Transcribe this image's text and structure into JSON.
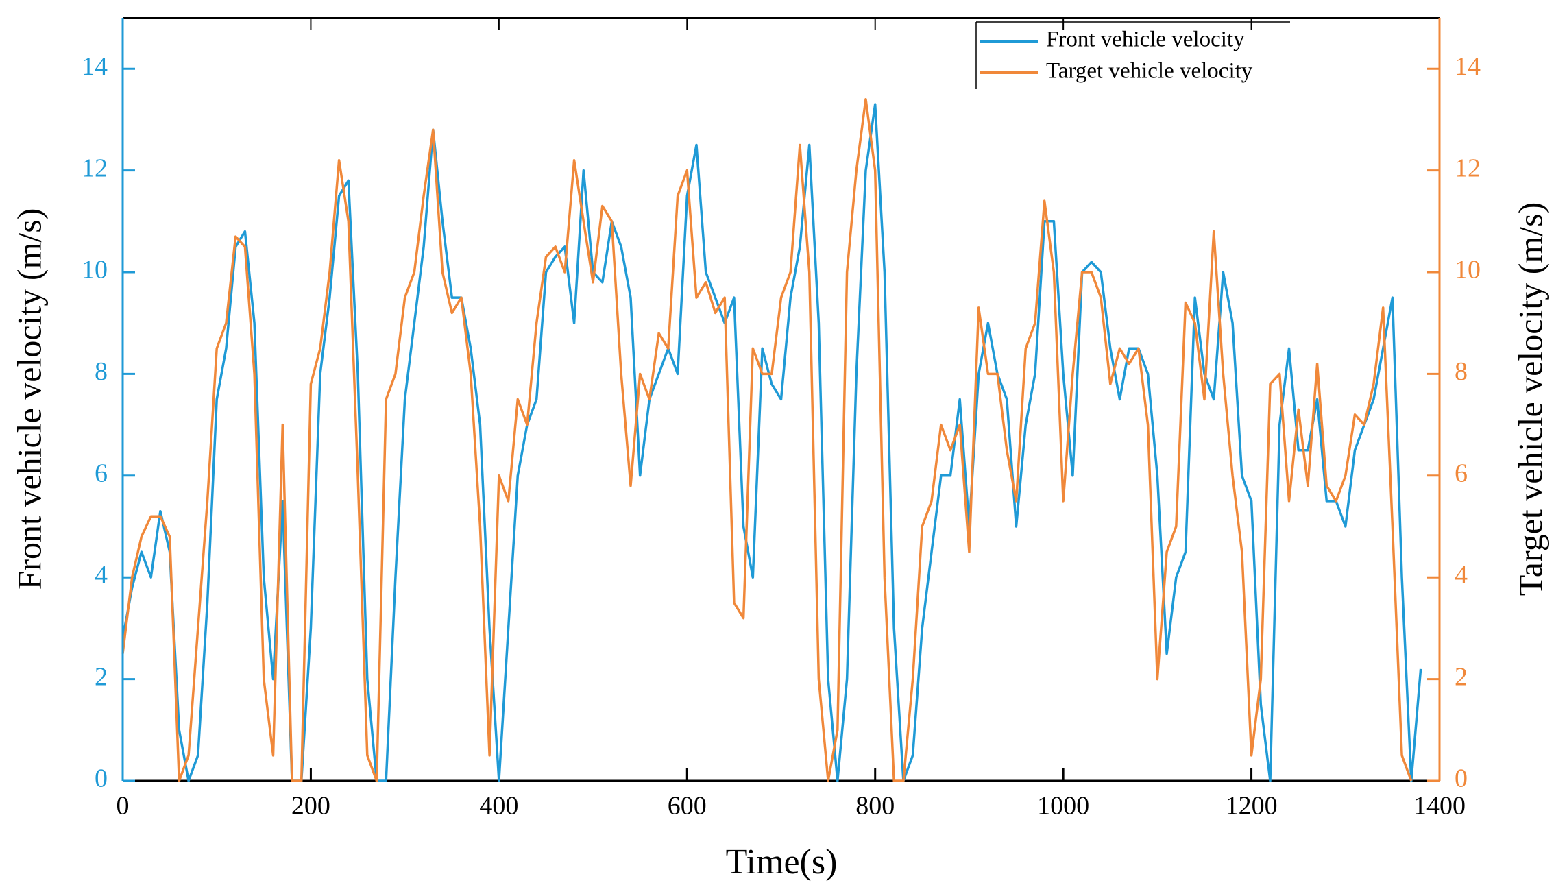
{
  "chart_data": {
    "type": "line",
    "xlabel": "Time(s)",
    "ylabel": "Front vehicle velocity (m/s)",
    "y2label": "Target vehicle velocity (m/s)",
    "x": [
      0,
      10,
      20,
      30,
      40,
      50,
      60,
      70,
      80,
      90,
      100,
      110,
      120,
      130,
      140,
      150,
      160,
      170,
      180,
      190,
      200,
      210,
      220,
      230,
      240,
      250,
      260,
      270,
      280,
      290,
      300,
      310,
      320,
      330,
      340,
      350,
      360,
      370,
      380,
      390,
      400,
      410,
      420,
      430,
      440,
      450,
      460,
      470,
      480,
      490,
      500,
      510,
      520,
      530,
      540,
      550,
      560,
      570,
      580,
      590,
      600,
      610,
      620,
      630,
      640,
      650,
      660,
      670,
      680,
      690,
      700,
      710,
      720,
      730,
      740,
      750,
      760,
      770,
      780,
      790,
      800,
      810,
      820,
      830,
      840,
      850,
      860,
      870,
      880,
      890,
      900,
      910,
      920,
      930,
      940,
      950,
      960,
      970,
      980,
      990,
      1000,
      1010,
      1020,
      1030,
      1040,
      1050,
      1060,
      1070,
      1080,
      1090,
      1100,
      1110,
      1120,
      1130,
      1140,
      1150,
      1160,
      1170,
      1180,
      1190,
      1200,
      1210,
      1220,
      1230,
      1240,
      1250,
      1260,
      1270,
      1280,
      1290,
      1300,
      1310,
      1320,
      1330,
      1340,
      1350,
      1360,
      1370,
      1380
    ],
    "series": [
      {
        "name": "Front vehicle velocity",
        "color": "#1f9ad6",
        "axis": "y",
        "values": [
          2.8,
          3.8,
          4.5,
          4.0,
          5.3,
          4.5,
          1.0,
          0,
          0.5,
          3.5,
          7.5,
          8.5,
          10.5,
          10.8,
          9,
          4,
          2,
          5.5,
          0,
          0,
          3,
          8,
          9.5,
          11.5,
          11.8,
          8,
          2,
          0,
          0,
          4,
          7.5,
          9,
          10.5,
          12.8,
          11,
          9.5,
          9.5,
          8.5,
          7,
          3,
          0,
          3,
          6,
          7,
          7.5,
          10,
          10.3,
          10.5,
          9,
          12,
          10,
          9.8,
          11,
          10.5,
          9.5,
          6,
          7.5,
          8,
          8.5,
          8,
          11.5,
          12.5,
          10,
          9.5,
          9,
          9.5,
          5,
          4,
          8.5,
          7.8,
          7.5,
          9.5,
          10.5,
          12.5,
          9,
          2,
          0,
          2,
          8,
          12,
          13.3,
          10,
          3,
          0,
          0.5,
          3,
          4.5,
          6,
          6,
          7.5,
          5,
          8,
          9,
          8,
          7.5,
          5,
          7,
          8,
          11,
          11,
          8,
          6,
          10,
          10.2,
          10,
          8.5,
          7.5,
          8.5,
          8.5,
          8,
          6,
          2.5,
          4,
          4.5,
          9.5,
          8,
          7.5,
          10,
          9,
          6,
          5.5,
          1.5,
          0,
          7,
          8.5,
          6.5,
          6.5,
          7.5,
          5.5,
          5.5,
          5,
          6.5,
          7,
          7.5,
          8.5,
          9.5,
          4,
          0,
          2.2
        ]
      },
      {
        "name": "Target vehicle velocity",
        "color": "#f0883a",
        "axis": "y2",
        "values": [
          2.5,
          4,
          4.8,
          5.2,
          5.2,
          4.8,
          0,
          0.5,
          3,
          5.5,
          8.5,
          9,
          10.7,
          10.5,
          8,
          2,
          0.5,
          7,
          0,
          0,
          7.8,
          8.5,
          10,
          12.2,
          11,
          6,
          0.5,
          0,
          7.5,
          8,
          9.5,
          10,
          11.5,
          12.8,
          10,
          9.2,
          9.5,
          8,
          5,
          0.5,
          6,
          5.5,
          7.5,
          7,
          9,
          10.3,
          10.5,
          10,
          12.2,
          11,
          9.8,
          11.3,
          11,
          8,
          5.8,
          8,
          7.5,
          8.8,
          8.5,
          11.5,
          12,
          9.5,
          9.8,
          9.2,
          9.5,
          3.5,
          3.2,
          8.5,
          8,
          8,
          9.5,
          10,
          12.5,
          10,
          2,
          0,
          1,
          10,
          12,
          13.4,
          12,
          4,
          0,
          0,
          2,
          5,
          5.5,
          7,
          6.5,
          7,
          4.5,
          9.3,
          8,
          8,
          6.5,
          5.5,
          8.5,
          9,
          11.4,
          10,
          5.5,
          8,
          10,
          10,
          9.5,
          7.8,
          8.5,
          8.2,
          8.5,
          7,
          2,
          4.5,
          5,
          9.4,
          9,
          7.5,
          10.8,
          8,
          6,
          4.5,
          0.5,
          2,
          7.8,
          8,
          5.5,
          7.3,
          5.8,
          8.2,
          5.8,
          5.5,
          6,
          7.2,
          7,
          7.8,
          9.3,
          5,
          0.5,
          0,
          null
        ]
      }
    ],
    "xlim": [
      0,
      1400
    ],
    "xticks": [
      0,
      200,
      400,
      600,
      800,
      1000,
      1200,
      1400
    ],
    "ylim": [
      0,
      15
    ],
    "yticks": [
      0,
      2,
      4,
      6,
      8,
      10,
      12,
      14
    ],
    "y2lim": [
      0,
      15
    ],
    "y2ticks": [
      0,
      2,
      4,
      6,
      8,
      10,
      12,
      14
    ],
    "legend": "upper right"
  }
}
